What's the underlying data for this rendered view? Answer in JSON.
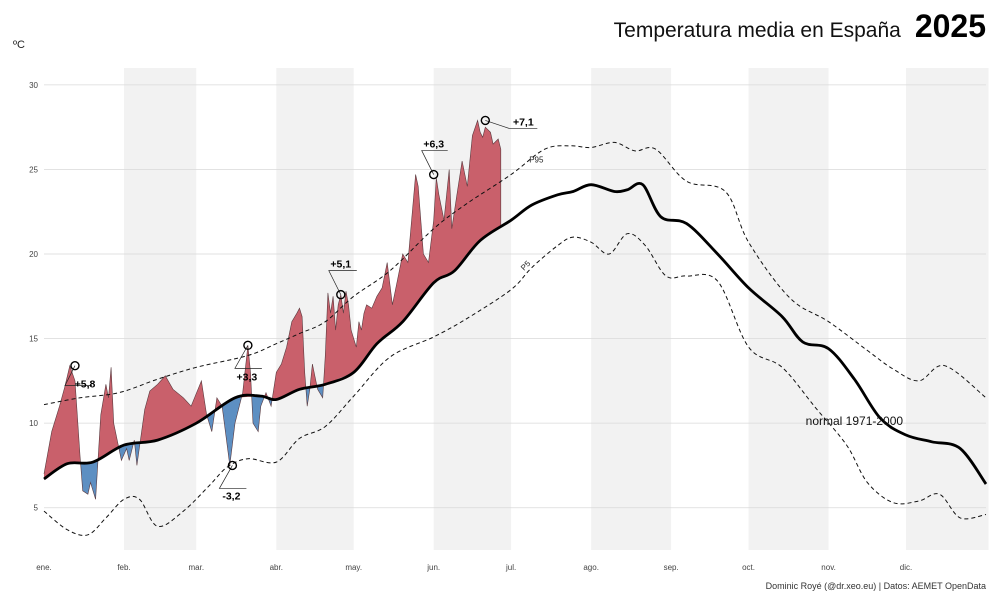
{
  "header": {
    "title": "Temperatura media en España",
    "year": "2025",
    "unit": "ºC"
  },
  "caption": "Dominic Royé (@dr.xeo.eu) | Datos: AEMET OpenData",
  "chart_data": {
    "type": "area",
    "title": "Temperatura media en España 2025",
    "ylabel": "ºC",
    "xlabel": "",
    "ylim": [
      2.5,
      31
    ],
    "yticks": [
      5,
      10,
      15,
      20,
      25,
      30
    ],
    "months": [
      "ene.",
      "feb.",
      "mar.",
      "abr.",
      "may.",
      "jun.",
      "jul.",
      "ago.",
      "sep.",
      "oct.",
      "nov.",
      "dic."
    ],
    "month_starts": [
      1,
      32,
      60,
      91,
      121,
      152,
      182,
      213,
      244,
      274,
      305,
      335
    ],
    "x_range": [
      1,
      366
    ],
    "grid": "horizontal",
    "series": [
      {
        "name": "normal 1971-2000",
        "style": "solid-thick",
        "x": [
          1,
          10,
          20,
          32,
          45,
          60,
          75,
          85,
          91,
          100,
          110,
          121,
          130,
          140,
          152,
          160,
          170,
          182,
          190,
          200,
          206,
          213,
          222,
          227,
          233,
          240,
          250,
          262,
          274,
          287,
          295,
          305,
          315,
          325,
          335,
          345,
          356,
          366
        ],
        "y": [
          6.7,
          7.6,
          7.7,
          8.7,
          9.0,
          10.0,
          11.5,
          11.6,
          11.4,
          12.0,
          12.3,
          13.0,
          14.7,
          16.0,
          18.3,
          19.0,
          20.8,
          22.0,
          22.9,
          23.5,
          23.7,
          24.1,
          23.7,
          23.8,
          24.1,
          22.2,
          21.8,
          20.0,
          18.0,
          16.3,
          14.8,
          14.4,
          12.6,
          10.3,
          9.3,
          8.9,
          8.5,
          6.4
        ]
      },
      {
        "name": "P95",
        "style": "dashed",
        "x": [
          1,
          15,
          30,
          45,
          60,
          80,
          91,
          100,
          110,
          121,
          135,
          152,
          165,
          182,
          195,
          205,
          213,
          222,
          230,
          238,
          250,
          265,
          274,
          290,
          305,
          320,
          330,
          340,
          350,
          366
        ],
        "y": [
          11.1,
          11.5,
          11.8,
          12.6,
          13.3,
          14.0,
          14.7,
          15.3,
          16.0,
          17.5,
          19.0,
          21.5,
          23.0,
          24.7,
          26.2,
          26.4,
          26.3,
          26.6,
          26.1,
          26.2,
          24.3,
          23.7,
          20.7,
          17.4,
          16.0,
          14.3,
          13.2,
          12.5,
          13.4,
          11.5
        ]
      },
      {
        "name": "P5",
        "style": "dashed",
        "x": [
          1,
          10,
          18,
          25,
          32,
          38,
          45,
          55,
          65,
          72,
          80,
          91,
          100,
          110,
          121,
          135,
          152,
          165,
          182,
          190,
          200,
          206,
          213,
          220,
          227,
          234,
          242,
          250,
          262,
          274,
          287,
          300,
          312,
          320,
          330,
          340,
          348,
          356,
          366
        ],
        "y": [
          4.8,
          3.7,
          3.4,
          4.4,
          5.5,
          5.5,
          3.9,
          4.8,
          6.3,
          7.4,
          7.9,
          7.7,
          9.1,
          9.8,
          11.6,
          13.9,
          15.1,
          16.2,
          17.9,
          19.2,
          20.5,
          21.0,
          20.7,
          20.0,
          21.2,
          20.5,
          18.7,
          18.7,
          18.4,
          14.5,
          13.3,
          10.9,
          8.7,
          6.5,
          5.3,
          5.4,
          5.8,
          4.4,
          4.6
        ]
      },
      {
        "name": "2025",
        "style": "filled-anomaly",
        "x": [
          1,
          4,
          7,
          9,
          11,
          13,
          15,
          16,
          18,
          19,
          20,
          21,
          23,
          25,
          26,
          27,
          28,
          31,
          33,
          34,
          36,
          37,
          40,
          42,
          45,
          48,
          51,
          55,
          58,
          62,
          64,
          66,
          68,
          70,
          73,
          75,
          78,
          80,
          81,
          82,
          84,
          85,
          87,
          89,
          90,
          91,
          93,
          95,
          97,
          99,
          100,
          101,
          102,
          103,
          104,
          105,
          107,
          109,
          110,
          111,
          112,
          113,
          114,
          115,
          116,
          117,
          118,
          119,
          120,
          122,
          123,
          124,
          125,
          126,
          128,
          130,
          132,
          134,
          136,
          138,
          140,
          142,
          145,
          146,
          147,
          148,
          150,
          152,
          153,
          154,
          156,
          158,
          159,
          161,
          163,
          165,
          167,
          169,
          170,
          171,
          172,
          174,
          175,
          177,
          178
        ],
        "y": [
          7.0,
          9.5,
          11.0,
          12.1,
          13.4,
          12.5,
          8.0,
          6.0,
          5.8,
          6.5,
          6.0,
          5.5,
          10.5,
          12.3,
          11.5,
          13.3,
          10.0,
          7.8,
          8.5,
          7.8,
          9.0,
          7.5,
          10.8,
          11.9,
          12.3,
          12.8,
          12.0,
          11.5,
          11.0,
          12.5,
          10.5,
          9.5,
          11.5,
          11.0,
          7.5,
          10.0,
          11.8,
          14.6,
          13.0,
          10.0,
          9.5,
          11.0,
          11.8,
          11.0,
          12.0,
          13.0,
          13.5,
          14.5,
          16.0,
          16.5,
          16.8,
          16.3,
          13.0,
          11.0,
          12.0,
          13.5,
          12.0,
          11.5,
          14.0,
          17.7,
          16.5,
          17.5,
          15.5,
          17.0,
          17.6,
          16.5,
          17.8,
          17.0,
          15.5,
          14.5,
          16.0,
          15.5,
          16.5,
          17.0,
          16.8,
          17.5,
          18.0,
          19.5,
          17.0,
          18.5,
          20.0,
          19.5,
          24.7,
          24.0,
          22.0,
          20.0,
          19.5,
          22.0,
          24.5,
          23.5,
          22.0,
          25.0,
          21.5,
          23.5,
          25.5,
          24.0,
          27.0,
          27.9,
          27.2,
          26.9,
          27.5,
          27.2,
          26.5,
          26.8,
          26.2
        ]
      }
    ],
    "annotations": [
      {
        "label": "+5,8",
        "x": 13,
        "y": 13.4,
        "type": "max"
      },
      {
        "label": "+3,3",
        "x": 80,
        "y": 14.6,
        "type": "max"
      },
      {
        "label": "-3,2",
        "x": 74,
        "y": 7.5,
        "type": "min"
      },
      {
        "label": "+5,1",
        "x": 116,
        "y": 17.6,
        "type": "max"
      },
      {
        "label": "+6,3",
        "x": 152,
        "y": 24.7,
        "type": "max"
      },
      {
        "label": "+7,1",
        "x": 172,
        "y": 27.9,
        "type": "max"
      }
    ],
    "curve_labels": {
      "p95": "P95",
      "p5": "P5",
      "normal": "normal 1971-2000"
    },
    "colors": {
      "above": "#c9606b",
      "below": "#5d8fc2",
      "band": "#f2f2f2",
      "grid": "#d9d9d9"
    }
  }
}
